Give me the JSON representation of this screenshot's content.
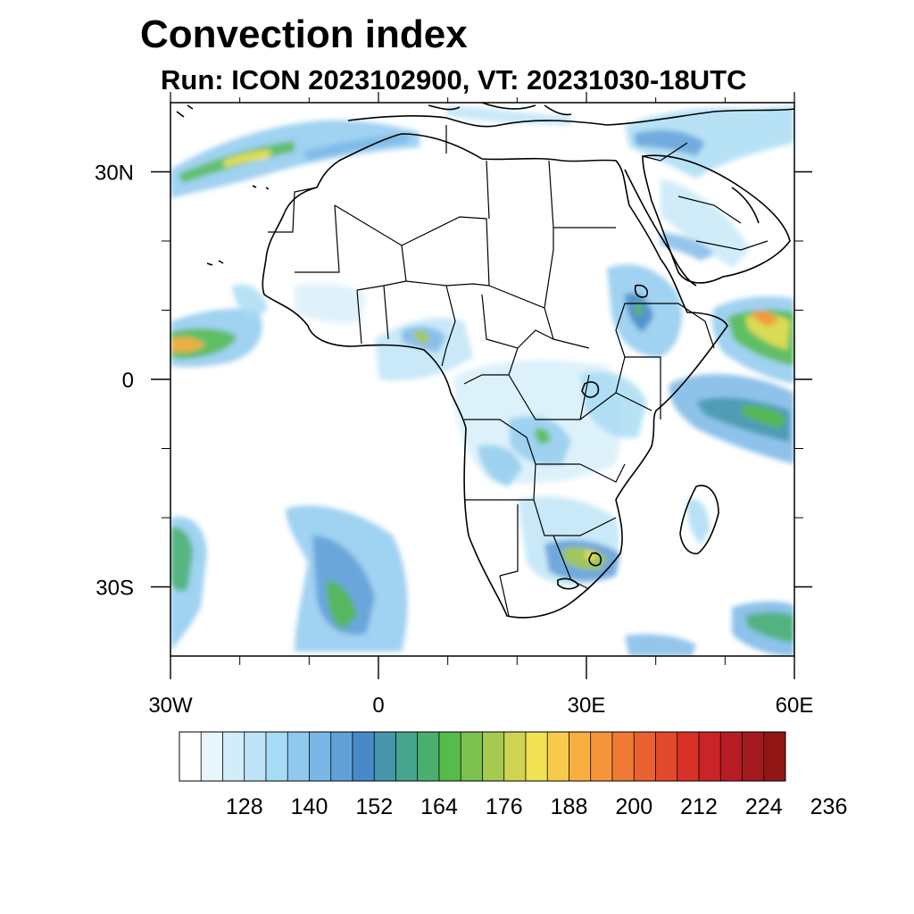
{
  "title": "Convection index",
  "subtitle": "Run: ICON 2023102900,  VT: 20231030-18UTC",
  "map": {
    "lon_range": [
      -30,
      60
    ],
    "lat_range": [
      -40,
      40
    ],
    "x_ticks": [
      {
        "value": -30,
        "label": "30W"
      },
      {
        "value": 0,
        "label": "0"
      },
      {
        "value": 30,
        "label": "30E"
      },
      {
        "value": 60,
        "label": "60E"
      }
    ],
    "y_ticks": [
      {
        "value": 30,
        "label": "30N"
      },
      {
        "value": 0,
        "label": "0"
      },
      {
        "value": -30,
        "label": "30S"
      }
    ]
  },
  "colorbar": {
    "colors": [
      "#ffffff",
      "#e8f5fc",
      "#d2ecf9",
      "#bce4f6",
      "#a5dbf4",
      "#8fcaee",
      "#79b7e6",
      "#619fd8",
      "#4a89c8",
      "#4596ab",
      "#47a48d",
      "#4bb06e",
      "#55bb4c",
      "#7dc14e",
      "#a6ca4f",
      "#cfd553",
      "#f0e252",
      "#f9cb4a",
      "#f9ae42",
      "#f6943c",
      "#f07a35",
      "#ea6130",
      "#e2482c",
      "#d83128",
      "#c92428",
      "#b71c24",
      "#a51920",
      "#911717"
    ],
    "tick_labels": [
      "128",
      "140",
      "152",
      "164",
      "176",
      "188",
      "200",
      "212",
      "224",
      "236"
    ]
  }
}
